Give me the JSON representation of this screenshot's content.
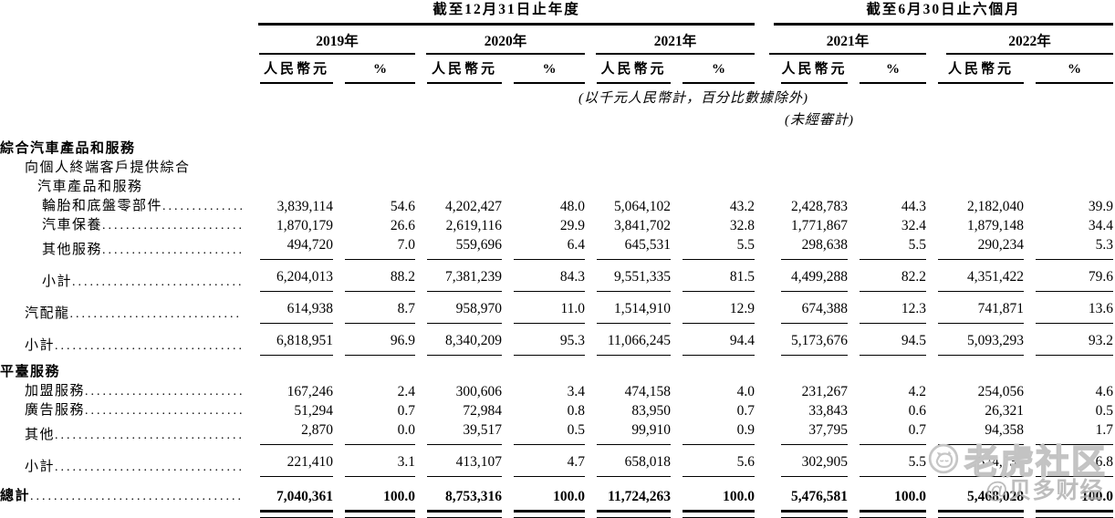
{
  "table": {
    "col_groups": [
      {
        "title": "截至12月31日止年度",
        "years": [
          "2019年",
          "2020年",
          "2021年"
        ]
      },
      {
        "title": "截至6月30日止六個月",
        "years": [
          "2021年",
          "2022年"
        ]
      }
    ],
    "sub_headers": {
      "amount": "人民幣元",
      "percent": "%"
    },
    "notes": {
      "units": "(以千元人民幣計，百分比數據除外)",
      "unaudited": "(未經審計)"
    },
    "rows": [
      {
        "label": "綜合汽車產品和服務",
        "style": "sec",
        "values": []
      },
      {
        "label": "向個人終端客戶提供綜合",
        "style": "ind1",
        "values": []
      },
      {
        "label": "汽車產品和服務",
        "style": "ind2",
        "values": []
      },
      {
        "label": "輪胎和底盤零部件",
        "style": "ind3",
        "dots": true,
        "values": [
          "3,839,114",
          "54.6",
          "4,202,427",
          "48.0",
          "5,064,102",
          "43.2",
          "2,428,783",
          "44.3",
          "2,182,040",
          "39.9"
        ]
      },
      {
        "label": "汽車保養",
        "style": "ind3",
        "dots": true,
        "values": [
          "1,870,179",
          "26.6",
          "2,619,116",
          "29.9",
          "3,841,702",
          "32.8",
          "1,771,867",
          "32.4",
          "1,879,148",
          "34.4"
        ]
      },
      {
        "label": "其他服務",
        "style": "ind3",
        "dots": true,
        "rule_below": true,
        "values": [
          "494,720",
          "7.0",
          "559,696",
          "6.4",
          "645,531",
          "5.5",
          "298,638",
          "5.5",
          "290,234",
          "5.3"
        ]
      },
      {
        "label": "小計",
        "style": "ind3",
        "dots": true,
        "rule_below": true,
        "gap_above": true,
        "values": [
          "6,204,013",
          "88.2",
          "7,381,239",
          "84.3",
          "9,551,335",
          "81.5",
          "4,499,288",
          "82.2",
          "4,351,422",
          "79.6"
        ]
      },
      {
        "label": "汽配龍",
        "style": "ind1",
        "dots": true,
        "rule_below": true,
        "gap_above": true,
        "values": [
          "614,938",
          "8.7",
          "958,970",
          "11.0",
          "1,514,910",
          "12.9",
          "674,388",
          "12.3",
          "741,871",
          "13.6"
        ]
      },
      {
        "label": "小計",
        "style": "ind1",
        "dots": true,
        "rule_below": true,
        "gap_above": true,
        "values": [
          "6,818,951",
          "96.9",
          "8,340,209",
          "95.3",
          "11,066,245",
          "94.4",
          "5,173,676",
          "94.5",
          "5,093,293",
          "93.2"
        ]
      },
      {
        "label": "平臺服務",
        "style": "sec",
        "gap_above": true,
        "values": []
      },
      {
        "label": "加盟服務",
        "style": "ind1",
        "dots": true,
        "values": [
          "167,246",
          "2.4",
          "300,606",
          "3.4",
          "474,158",
          "4.0",
          "231,267",
          "4.2",
          "254,056",
          "4.6"
        ]
      },
      {
        "label": "廣告服務",
        "style": "ind1",
        "dots": true,
        "values": [
          "51,294",
          "0.7",
          "72,984",
          "0.8",
          "83,950",
          "0.7",
          "33,843",
          "0.6",
          "26,321",
          "0.5"
        ]
      },
      {
        "label": "其他",
        "style": "ind1",
        "dots": true,
        "rule_below": true,
        "values": [
          "2,870",
          "0.0",
          "39,517",
          "0.5",
          "99,910",
          "0.9",
          "37,795",
          "0.7",
          "94,358",
          "1.7"
        ]
      },
      {
        "label": "小計",
        "style": "ind1",
        "dots": true,
        "rule_below": true,
        "gap_above": true,
        "values": [
          "221,410",
          "3.1",
          "413,107",
          "4.7",
          "658,018",
          "5.6",
          "302,905",
          "5.5",
          "374,735",
          "6.8"
        ]
      },
      {
        "label": "總計",
        "style": "sec total",
        "dots": true,
        "double_rule": true,
        "gap_above": true,
        "values": [
          "7,040,361",
          "100.0",
          "8,753,316",
          "100.0",
          "11,724,263",
          "100.0",
          "5,476,581",
          "100.0",
          "5,468,028",
          "100.0"
        ]
      }
    ]
  },
  "watermark": {
    "logo": "tiger-logo",
    "brand": "老虎社区",
    "credit": "@贝多财经"
  }
}
